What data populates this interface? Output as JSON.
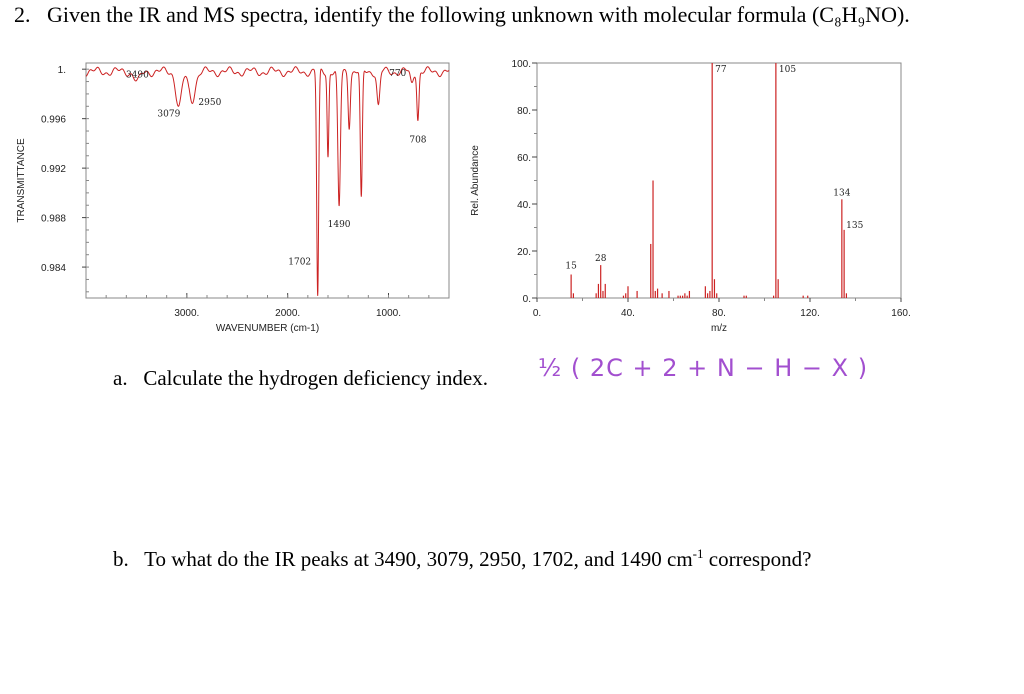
{
  "question": {
    "number": "2.",
    "text": "Given the IR and MS spectra, identify the following unknown with molecular formula (C₈H₉NO)."
  },
  "part_a": {
    "label": "a.",
    "text": "Calculate the hydrogen deficiency index.",
    "handwritten_note": "½ ( 2C + 2 + N − H − X )"
  },
  "part_b": {
    "label": "b.",
    "text_before": "To what do the IR peaks at 3490, 3079, 2950, 1702, and 1490 cm",
    "superscript": "-1",
    "text_after": " correspond?"
  },
  "colors": {
    "ir_trace": "#cc2222",
    "ms_bars": "#cc2222",
    "handwriting": "#a24fcf"
  },
  "chart_data": [
    {
      "type": "line",
      "xlabel": "WAVENUMBER (cm-1)",
      "ylabel": "TRANSMITTANCE",
      "xlim": [
        4000,
        400
      ],
      "ylim": [
        0.9815,
        1.0005
      ],
      "x_reversed": true,
      "x_ticks": [
        3000,
        2000,
        1000
      ],
      "x_tick_labels": [
        "3000.",
        "2000.",
        "1000."
      ],
      "y_ticks": [
        1.0,
        0.996,
        0.992,
        0.988,
        0.984
      ],
      "y_tick_labels": [
        "1.",
        "0.996",
        "0.992",
        "0.988",
        "0.984"
      ],
      "peaks": [
        {
          "x": 3490,
          "y": 0.999,
          "width": 45,
          "label": "3490"
        },
        {
          "x": 3079,
          "y": 0.997,
          "width": 40,
          "label": "3079"
        },
        {
          "x": 2950,
          "y": 0.9975,
          "width": 45,
          "label": "2950"
        },
        {
          "x": 1702,
          "y": 0.9815,
          "width": 14,
          "label": "1702"
        },
        {
          "x": 1490,
          "y": 0.9887,
          "width": 18,
          "label": "1490"
        },
        {
          "x": 1600,
          "y": 0.993,
          "width": 12,
          "label": ""
        },
        {
          "x": 1390,
          "y": 0.9955,
          "width": 15,
          "label": ""
        },
        {
          "x": 1270,
          "y": 0.9893,
          "width": 14,
          "label": ""
        },
        {
          "x": 1100,
          "y": 0.997,
          "width": 20,
          "label": ""
        },
        {
          "x": 770,
          "y": 0.9988,
          "width": 20,
          "label": "770"
        },
        {
          "x": 708,
          "y": 0.996,
          "width": 14,
          "label": "708"
        }
      ],
      "grid": false
    },
    {
      "type": "bar",
      "xlabel": "m/z",
      "ylabel": "Rel. Abundance",
      "xlim": [
        0,
        160
      ],
      "ylim": [
        0,
        100
      ],
      "x_ticks": [
        0,
        40,
        80,
        120,
        160
      ],
      "x_tick_labels": [
        "0.",
        "40.",
        "80.",
        "120.",
        "160."
      ],
      "y_ticks": [
        0,
        20,
        40,
        60,
        80,
        100
      ],
      "y_tick_labels": [
        "0.",
        "20.",
        "40.",
        "60.",
        "80.",
        "100."
      ],
      "x": [
        15,
        16,
        26,
        27,
        28,
        29,
        30,
        38,
        39,
        40,
        44,
        50,
        51,
        52,
        53,
        55,
        58,
        62,
        63,
        64,
        65,
        66,
        67,
        74,
        75,
        76,
        77,
        78,
        79,
        91,
        92,
        104,
        105,
        106,
        117,
        119,
        134,
        135,
        136
      ],
      "values": [
        10,
        2,
        2,
        6,
        14,
        3,
        6,
        1,
        2,
        5,
        3,
        23,
        50,
        3,
        4,
        2,
        3,
        1,
        1,
        1,
        2,
        1,
        3,
        5,
        2,
        3,
        100,
        8,
        2,
        1,
        1,
        1,
        100,
        8,
        1,
        1,
        42,
        29,
        2
      ],
      "labels": [
        {
          "x": 15,
          "text": "15"
        },
        {
          "x": 28,
          "text": "28"
        },
        {
          "x": 77,
          "text": "77"
        },
        {
          "x": 105,
          "text": "105"
        },
        {
          "x": 134,
          "text": "134"
        },
        {
          "x": 135,
          "text": "135"
        }
      ],
      "grid": false
    }
  ]
}
